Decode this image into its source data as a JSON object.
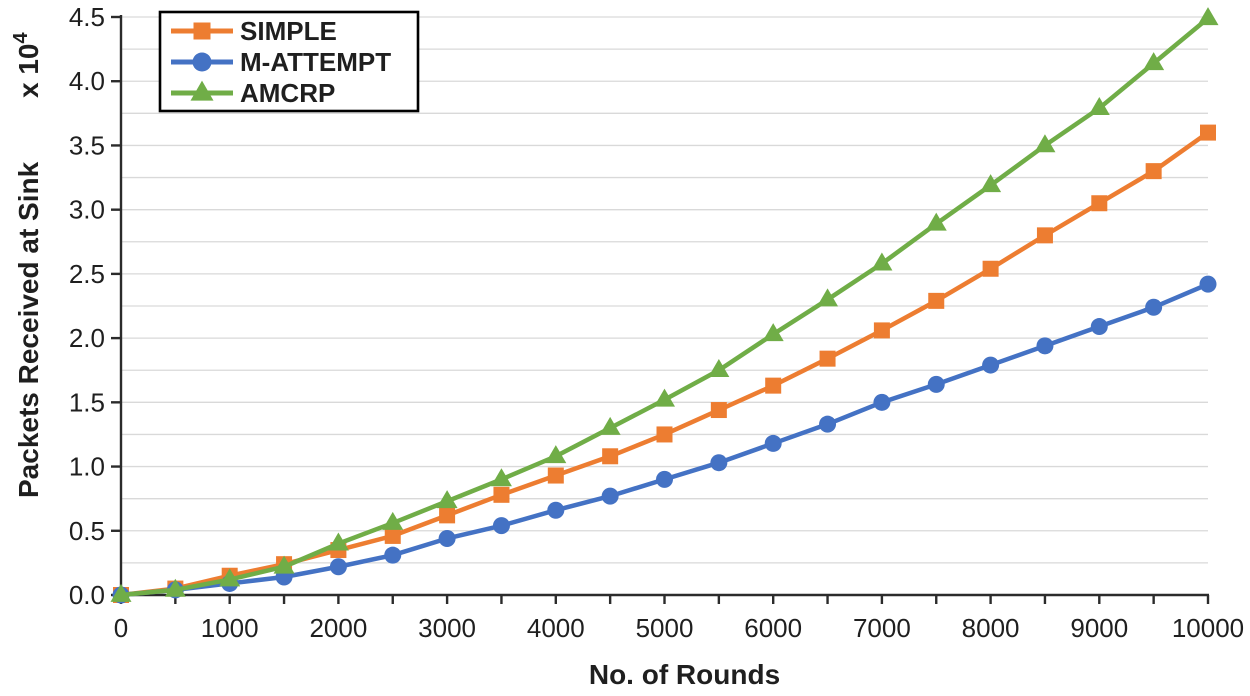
{
  "chart_data": {
    "type": "line",
    "title": "",
    "xlabel": "No. of Rounds",
    "ylabel": "Packets Received at Sink",
    "ylabel_multiplier": {
      "text": "x 10",
      "superscript": "4"
    },
    "xlim": [
      0,
      10000
    ],
    "ylim": [
      0,
      4.5
    ],
    "grid": "horizontal-only",
    "y_gridline_step": 0.25,
    "x_minor_tick_step": 500,
    "x_major_tick_step": 1000,
    "y_major_tick_step": 0.5,
    "legend_position": "top-left",
    "x": [
      0,
      500,
      1000,
      1500,
      2000,
      2500,
      3000,
      3500,
      4000,
      4500,
      5000,
      5500,
      6000,
      6500,
      7000,
      7500,
      8000,
      8500,
      9000,
      9500,
      10000
    ],
    "x_tick_labels": [
      "0",
      "1000",
      "2000",
      "3000",
      "4000",
      "5000",
      "6000",
      "7000",
      "8000",
      "9000",
      "10000"
    ],
    "y_tick_labels": [
      "0.0",
      "0.5",
      "1.0",
      "1.5",
      "2.0",
      "2.5",
      "3.0",
      "3.5",
      "4.0",
      "4.5"
    ],
    "series": [
      {
        "name": "SIMPLE",
        "color": "#ED7D31",
        "marker": "square",
        "values": [
          0.0,
          0.05,
          0.15,
          0.24,
          0.35,
          0.46,
          0.62,
          0.78,
          0.93,
          1.08,
          1.25,
          1.44,
          1.63,
          1.84,
          2.06,
          2.29,
          2.54,
          2.8,
          3.05,
          3.3,
          3.6
        ]
      },
      {
        "name": "M-ATTEMPT",
        "color": "#4472C4",
        "marker": "circle",
        "values": [
          0.0,
          0.04,
          0.09,
          0.14,
          0.22,
          0.31,
          0.44,
          0.54,
          0.66,
          0.77,
          0.9,
          1.03,
          1.18,
          1.33,
          1.5,
          1.64,
          1.79,
          1.94,
          2.09,
          2.24,
          2.42
        ]
      },
      {
        "name": "AMCRP",
        "color": "#70AD47",
        "marker": "triangle",
        "values": [
          0.0,
          0.04,
          0.12,
          0.22,
          0.4,
          0.56,
          0.73,
          0.9,
          1.08,
          1.3,
          1.52,
          1.75,
          2.03,
          2.3,
          2.58,
          2.89,
          3.19,
          3.5,
          3.79,
          4.14,
          4.49
        ]
      }
    ],
    "colors": {
      "gridline": "#D9D9D9",
      "axis": "#2B2B2B",
      "text": "#1F1F1F",
      "background": "#FFFFFF",
      "legend_border": "#000000"
    }
  }
}
